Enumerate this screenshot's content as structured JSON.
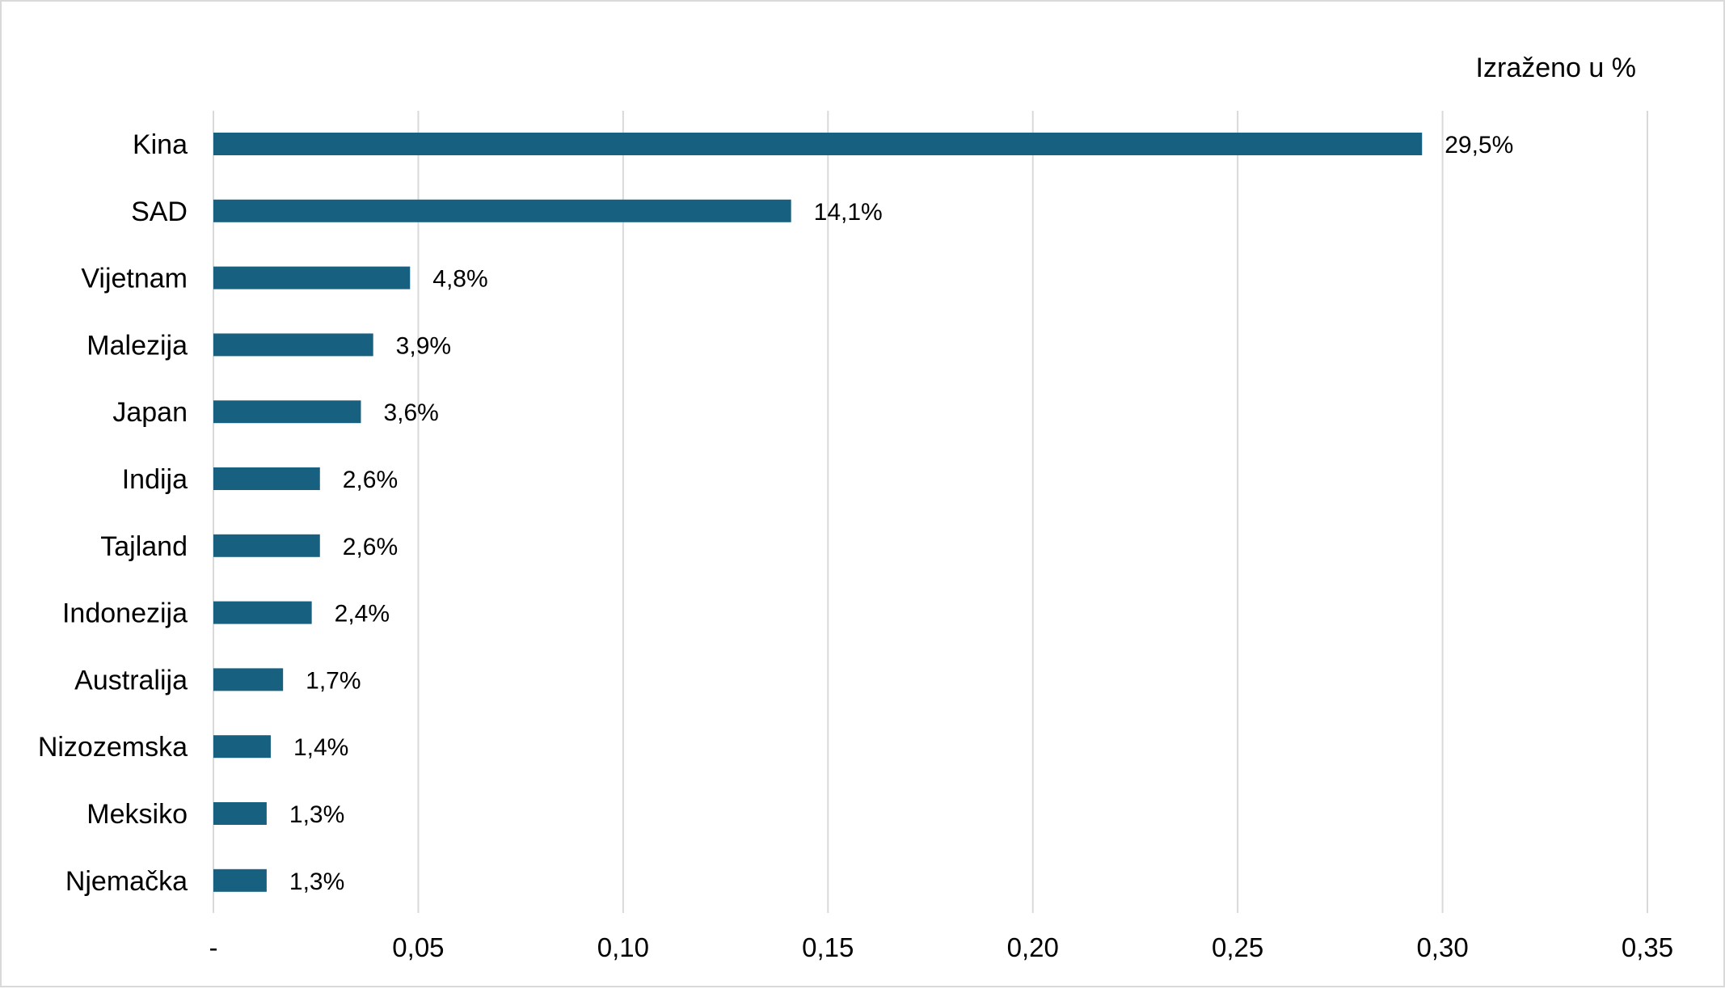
{
  "chart_data": {
    "type": "bar",
    "orientation": "horizontal",
    "unit_note": "Izraženo u %",
    "categories": [
      "Kina",
      "SAD",
      "Vijetnam",
      "Malezija",
      "Japan",
      "Indija",
      "Tajland",
      "Indonezija",
      "Australija",
      "Nizozemska",
      "Meksiko",
      "Njemačka"
    ],
    "values": [
      0.295,
      0.141,
      0.048,
      0.039,
      0.036,
      0.026,
      0.026,
      0.024,
      0.017,
      0.014,
      0.013,
      0.013
    ],
    "data_labels": [
      "29,5%",
      "14,1%",
      "4,8%",
      "3,9%",
      "3,6%",
      "2,6%",
      "2,6%",
      "2,4%",
      "1,7%",
      "1,4%",
      "1,3%",
      "1,3%"
    ],
    "x_ticks": [
      0,
      0.05,
      0.1,
      0.15,
      0.2,
      0.25,
      0.3,
      0.35
    ],
    "x_tick_labels": [
      "-",
      "0,05",
      "0,10",
      "0,15",
      "0,20",
      "0,25",
      "0,30",
      "0,35"
    ],
    "xlim": [
      0,
      0.35
    ],
    "grid": "vertical",
    "bar_color": "#17607f",
    "grid_color": "#d9d9d9"
  }
}
